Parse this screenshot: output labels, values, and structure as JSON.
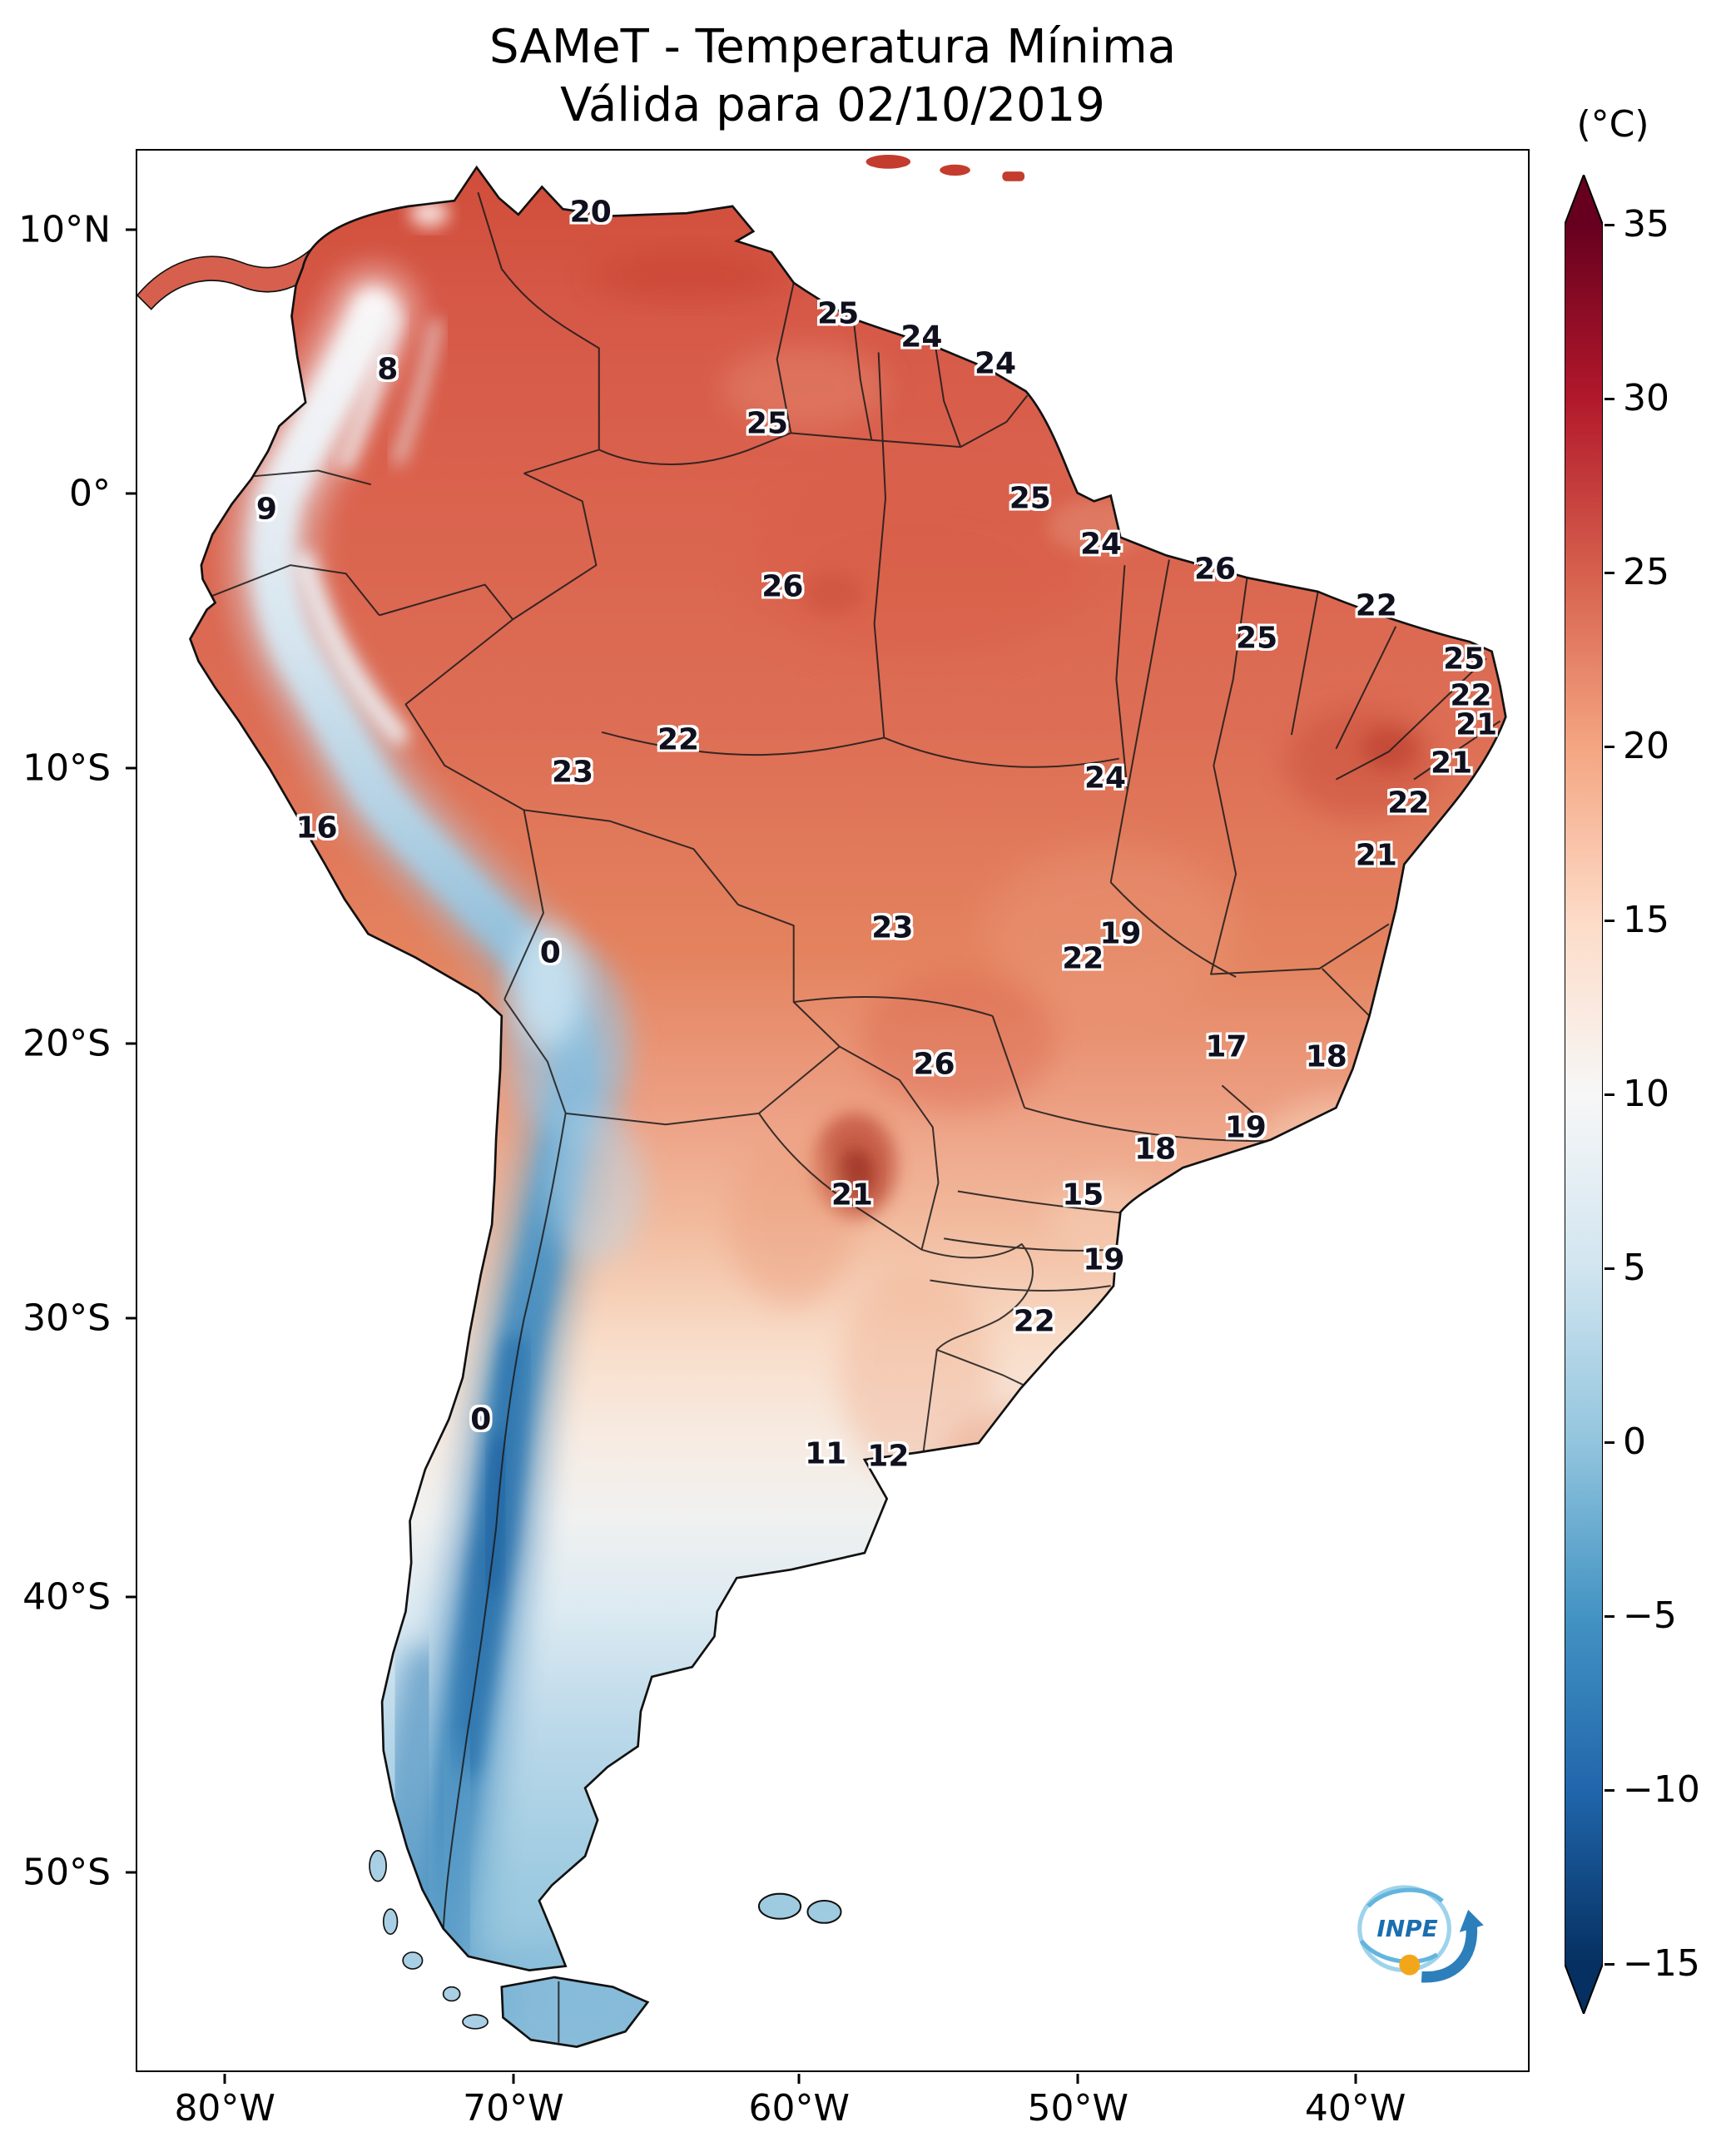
{
  "title": {
    "line1": "SAMeT - Temperatura Mínima",
    "line2": "Válida para 02/10/2019"
  },
  "colorbar": {
    "unit": "(°C)",
    "ticks": [
      "35",
      "30",
      "25",
      "20",
      "15",
      "10",
      "5",
      "0",
      "−5",
      "−10",
      "−15"
    ],
    "palette": [
      "#67001f",
      "#b2182b",
      "#d6604d",
      "#f4a582",
      "#fddbc7",
      "#f7f7f7",
      "#d1e5f0",
      "#92c5de",
      "#4393c3",
      "#2166ac",
      "#053061"
    ]
  },
  "axes": {
    "latitude_ticks": [
      {
        "label": "10°N",
        "y_pct": 4.2
      },
      {
        "label": "0°",
        "y_pct": 17.9
      },
      {
        "label": "10°S",
        "y_pct": 32.2
      },
      {
        "label": "20°S",
        "y_pct": 46.5
      },
      {
        "label": "30°S",
        "y_pct": 60.8
      },
      {
        "label": "40°S",
        "y_pct": 75.3
      },
      {
        "label": "50°S",
        "y_pct": 89.6
      }
    ],
    "longitude_ticks": [
      {
        "label": "80°W",
        "x_pct": 6.4
      },
      {
        "label": "70°W",
        "x_pct": 27.1
      },
      {
        "label": "60°W",
        "x_pct": 47.6
      },
      {
        "label": "50°W",
        "x_pct": 67.6
      },
      {
        "label": "40°W",
        "x_pct": 87.5
      }
    ]
  },
  "logo": {
    "text": "INPE"
  },
  "chart_data": {
    "type": "heatmap",
    "title": "SAMeT - Temperatura Mínima",
    "subtitle": "Válida para 02/10/2019",
    "variable": "minimum temperature over South America",
    "date": "02/10/2019",
    "units": "°C",
    "colormap": "RdBu_r",
    "value_range": [
      -15,
      35
    ],
    "colorbar_extend": "both",
    "x_axis_ticks": [
      "80°W",
      "70°W",
      "60°W",
      "50°W",
      "40°W"
    ],
    "y_axis_ticks": [
      "10°N",
      "0°",
      "10°S",
      "20°S",
      "30°S",
      "40°S",
      "50°S"
    ],
    "stations": [
      {
        "value": 20,
        "x_pct": 32.6,
        "y_pct": 3.2,
        "lon": -66.9,
        "lat": 10.7
      },
      {
        "value": 25,
        "x_pct": 50.4,
        "y_pct": 8.5,
        "lon": -58.0,
        "lat": 7.0
      },
      {
        "value": 24,
        "x_pct": 56.4,
        "y_pct": 9.7,
        "lon": -55.0,
        "lat": 6.2
      },
      {
        "value": 24,
        "x_pct": 61.7,
        "y_pct": 11.1,
        "lon": -52.3,
        "lat": 5.2
      },
      {
        "value": 8,
        "x_pct": 18.0,
        "y_pct": 11.4,
        "lon": -74.2,
        "lat": 5.0
      },
      {
        "value": 25,
        "x_pct": 45.3,
        "y_pct": 14.2,
        "lon": -60.5,
        "lat": 3.0
      },
      {
        "value": 9,
        "x_pct": 9.3,
        "y_pct": 18.7,
        "lon": -78.5,
        "lat": -0.2
      },
      {
        "value": 25,
        "x_pct": 64.2,
        "y_pct": 18.1,
        "lon": -51.1,
        "lat": 0.3
      },
      {
        "value": 24,
        "x_pct": 69.3,
        "y_pct": 20.5,
        "lon": -48.5,
        "lat": -1.4
      },
      {
        "value": 26,
        "x_pct": 77.5,
        "y_pct": 21.8,
        "lon": -44.4,
        "lat": -2.3
      },
      {
        "value": 26,
        "x_pct": 46.4,
        "y_pct": 22.7,
        "lon": -60.0,
        "lat": -3.0
      },
      {
        "value": 22,
        "x_pct": 89.1,
        "y_pct": 23.7,
        "lon": -38.6,
        "lat": -3.7
      },
      {
        "value": 25,
        "x_pct": 80.5,
        "y_pct": 25.4,
        "lon": -42.9,
        "lat": -4.9
      },
      {
        "value": 25,
        "x_pct": 95.4,
        "y_pct": 26.5,
        "lon": -35.5,
        "lat": -5.6
      },
      {
        "value": 22,
        "x_pct": 95.9,
        "y_pct": 28.4,
        "lon": -35.2,
        "lat": -7.0
      },
      {
        "value": 21,
        "x_pct": 96.3,
        "y_pct": 29.9,
        "lon": -35.0,
        "lat": -8.0
      },
      {
        "value": 22,
        "x_pct": 38.9,
        "y_pct": 30.7,
        "lon": -63.7,
        "lat": -8.6
      },
      {
        "value": 23,
        "x_pct": 31.3,
        "y_pct": 32.4,
        "lon": -67.5,
        "lat": -9.8
      },
      {
        "value": 24,
        "x_pct": 69.6,
        "y_pct": 32.7,
        "lon": -48.4,
        "lat": -10.0
      },
      {
        "value": 21,
        "x_pct": 94.5,
        "y_pct": 31.9,
        "lon": -35.9,
        "lat": -9.4
      },
      {
        "value": 22,
        "x_pct": 91.4,
        "y_pct": 34.0,
        "lon": -37.5,
        "lat": -10.9
      },
      {
        "value": 16,
        "x_pct": 12.9,
        "y_pct": 35.3,
        "lon": -76.7,
        "lat": -11.8
      },
      {
        "value": 21,
        "x_pct": 89.1,
        "y_pct": 36.7,
        "lon": -38.6,
        "lat": -12.8
      },
      {
        "value": 0,
        "x_pct": 29.7,
        "y_pct": 41.8,
        "lon": -68.3,
        "lat": -16.4
      },
      {
        "value": 19,
        "x_pct": 70.7,
        "y_pct": 40.8,
        "lon": -47.8,
        "lat": -15.7
      },
      {
        "value": 22,
        "x_pct": 68.0,
        "y_pct": 42.1,
        "lon": -49.2,
        "lat": -16.6
      },
      {
        "value": 23,
        "x_pct": 54.3,
        "y_pct": 40.5,
        "lon": -56.0,
        "lat": -15.5
      },
      {
        "value": 17,
        "x_pct": 78.3,
        "y_pct": 46.7,
        "lon": -44.0,
        "lat": -19.8
      },
      {
        "value": 18,
        "x_pct": 85.5,
        "y_pct": 47.2,
        "lon": -40.4,
        "lat": -20.2
      },
      {
        "value": 26,
        "x_pct": 57.3,
        "y_pct": 47.6,
        "lon": -54.5,
        "lat": -20.4
      },
      {
        "value": 18,
        "x_pct": 73.2,
        "y_pct": 52.0,
        "lon": -46.6,
        "lat": -23.5
      },
      {
        "value": 19,
        "x_pct": 79.7,
        "y_pct": 50.9,
        "lon": -43.3,
        "lat": -22.8
      },
      {
        "value": 21,
        "x_pct": 51.4,
        "y_pct": 54.4,
        "lon": -57.5,
        "lat": -25.2
      },
      {
        "value": 15,
        "x_pct": 68.0,
        "y_pct": 54.4,
        "lon": -49.2,
        "lat": -25.2
      },
      {
        "value": 19,
        "x_pct": 69.5,
        "y_pct": 57.8,
        "lon": -48.4,
        "lat": -27.6
      },
      {
        "value": 22,
        "x_pct": 64.5,
        "y_pct": 61.0,
        "lon": -50.9,
        "lat": -29.8
      },
      {
        "value": 0,
        "x_pct": 24.7,
        "y_pct": 66.1,
        "lon": -70.8,
        "lat": -33.4
      },
      {
        "value": 11,
        "x_pct": 49.5,
        "y_pct": 67.9,
        "lon": -58.4,
        "lat": -34.7
      },
      {
        "value": 12,
        "x_pct": 54.0,
        "y_pct": 68.0,
        "lon": -56.2,
        "lat": -34.8
      }
    ]
  }
}
